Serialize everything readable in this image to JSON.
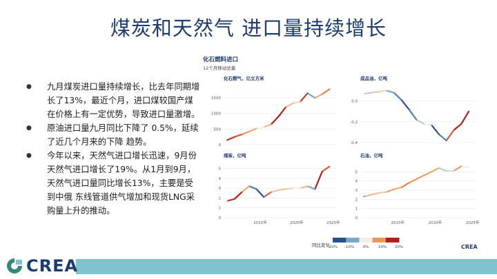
{
  "slide": {
    "title": "煤炭和天然气 进口量持续增长",
    "bullets": [
      "九月煤炭进口量持续增长，比去年同期增长了13%，最近个月，进口煤较国产煤在价格上有一定优势，导致进口量激增。",
      "原油进口量九月同比下降了 0.5%，延续了近几个月来的下降 趋势。",
      "今年以来，天然气进口增长迅速，9月份天然气进口增长了19%。从1月到9月，天然气进口量同比增长13%，主要是受到中俄 东线管道供气增加和现货LNG采购量上升的推动。"
    ],
    "logo_text": "CREA"
  },
  "figure": {
    "title": "化石燃料进口",
    "subtitle": "12个月移动总量",
    "legend_title": "同比变化",
    "legend_ticks": [
      "-20%",
      "-10%",
      "0%",
      "10%",
      "20%"
    ],
    "legend_colors": [
      "#2b4e8c",
      "#7da7c9",
      "#f2efe6",
      "#e99a5a",
      "#b01e1e"
    ],
    "brand_mark": "CREA",
    "x_ticks": [
      "2015年",
      "2020年",
      "2025年"
    ]
  },
  "chart_data": [
    {
      "type": "line",
      "title": "化石燃气，亿立方米",
      "x": [
        2010.5,
        2011.5,
        2012.5,
        2013.5,
        2014.5,
        2015.5,
        2016.5,
        2017.5,
        2018.5,
        2019.5,
        2020.5,
        2021.5,
        2022.5,
        2023.5,
        2024.5
      ],
      "y": [
        150,
        250,
        330,
        420,
        520,
        560,
        650,
        900,
        1200,
        1330,
        1380,
        1650,
        1500,
        1620,
        1780
      ],
      "yoy_pct": [
        20,
        18,
        15,
        10,
        8,
        0,
        6,
        20,
        20,
        6,
        3,
        18,
        -10,
        8,
        12
      ],
      "ylim": [
        0,
        1900
      ],
      "yticks": [
        "0",
        "500",
        "1000",
        "1500"
      ]
    },
    {
      "type": "line",
      "title": "成品油，亿吨",
      "x": [
        2010.5,
        2011.5,
        2012.5,
        2013.5,
        2014.5,
        2015.5,
        2016.5,
        2017.5,
        2018.5,
        2019.5,
        2020.5,
        2021.5,
        2022.5,
        2023.5,
        2024.5
      ],
      "y": [
        0.07,
        0.08,
        0.09,
        0.1,
        0.08,
        0.01,
        -0.08,
        -0.18,
        -0.22,
        -0.23,
        -0.32,
        -0.38,
        -0.28,
        -0.22,
        -0.1
      ],
      "yoy_pct": [
        0,
        -5,
        5,
        3,
        -10,
        -15,
        -20,
        -15,
        -5,
        0,
        -20,
        -15,
        15,
        20,
        20
      ],
      "ylim": [
        -0.42,
        0.15
      ],
      "yticks": [
        "0.0",
        "-0.2",
        "-0.4"
      ]
    },
    {
      "type": "line",
      "title": "煤炭，亿吨",
      "x": [
        2010.5,
        2011.5,
        2012.5,
        2013.5,
        2014.5,
        2015.5,
        2016.5,
        2017.5,
        2018.5,
        2019.5,
        2020.5,
        2021.5,
        2022.5,
        2023.5,
        2024.5
      ],
      "y": [
        1.7,
        1.9,
        2.6,
        3.2,
        2.9,
        2.1,
        2.6,
        2.8,
        2.9,
        3.0,
        3.0,
        3.2,
        2.9,
        4.7,
        5.2
      ],
      "yoy_pct": [
        5,
        18,
        20,
        8,
        -15,
        -20,
        15,
        5,
        5,
        3,
        0,
        6,
        -10,
        20,
        15
      ],
      "ylim": [
        0,
        5.6
      ],
      "yticks": [
        "0",
        "1",
        "2",
        "3",
        "4",
        "5"
      ]
    },
    {
      "type": "line",
      "title": "石油，亿吨",
      "x": [
        2010.5,
        2011.5,
        2012.5,
        2013.5,
        2014.5,
        2015.5,
        2016.5,
        2017.5,
        2018.5,
        2019.5,
        2020.5,
        2021.5,
        2022.5,
        2023.5,
        2024.5
      ],
      "y": [
        2.3,
        2.5,
        2.7,
        2.8,
        3.1,
        3.3,
        3.8,
        4.2,
        4.6,
        5.0,
        5.4,
        5.1,
        5.1,
        5.6,
        5.5
      ],
      "yoy_pct": [
        15,
        6,
        6,
        4,
        9,
        8,
        12,
        10,
        10,
        9,
        8,
        -5,
        -2,
        10,
        0
      ],
      "ylim": [
        0,
        6
      ],
      "yticks": [
        "0",
        "1",
        "2",
        "3",
        "4",
        "5"
      ]
    }
  ]
}
